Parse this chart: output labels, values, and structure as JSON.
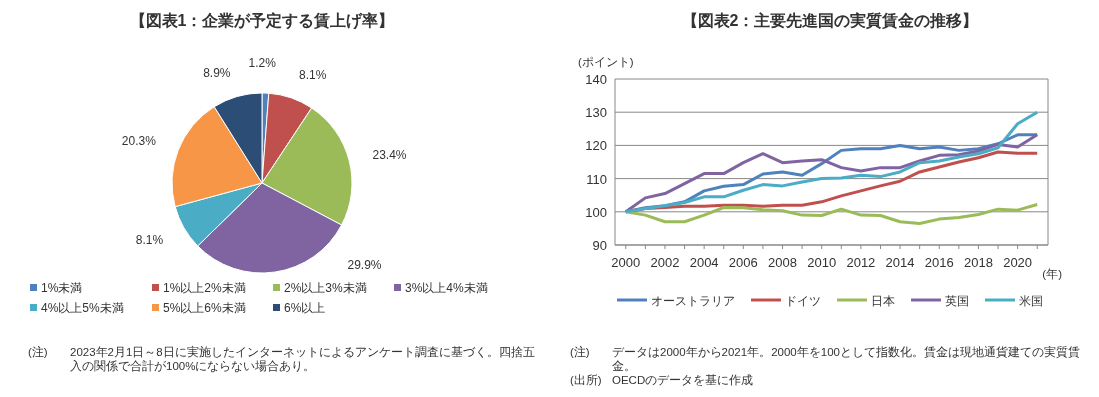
{
  "chart_data": [
    {
      "type": "pie",
      "title": "【図表1：企業が予定する賃上げ率】",
      "categories": [
        "1%未満",
        "1%以上2%未満",
        "2%以上3%未満",
        "3%以上4%未満",
        "4%以上5%未満",
        "5%以上6%未満",
        "6%以上"
      ],
      "values": [
        1.2,
        8.1,
        23.4,
        29.9,
        8.1,
        20.3,
        8.9
      ],
      "value_labels": [
        "1.2%",
        "8.1%",
        "23.4%",
        "29.9%",
        "8.1%",
        "20.3%",
        "8.9%"
      ],
      "colors": [
        "#4f81bd",
        "#c0504d",
        "#9bbb59",
        "#8064a2",
        "#4bacc6",
        "#f79646",
        "#2c4d75"
      ],
      "legend": "bottom",
      "annotations": [
        "(注)",
        "2023年2月1日～8日に実施したインターネットによるアンケート調査に基づく。四捨五入の関係で合計が100%にならない場合あり。"
      ]
    },
    {
      "type": "line",
      "title": "【図表2：主要先進国の実質賃金の推移】",
      "ylabel": "(ポイント)",
      "xlabel": "(年)",
      "x": [
        2000,
        2001,
        2002,
        2003,
        2004,
        2005,
        2006,
        2007,
        2008,
        2009,
        2010,
        2011,
        2012,
        2013,
        2014,
        2015,
        2016,
        2017,
        2018,
        2019,
        2020,
        2021
      ],
      "series": [
        {
          "name": "オーストラリア",
          "color": "#4f81bd",
          "values": [
            100,
            101.2,
            101.8,
            103,
            106.3,
            107.7,
            108.2,
            111.4,
            112,
            111,
            114.5,
            118.5,
            119,
            119,
            120,
            119,
            119.5,
            118.5,
            119,
            120.5,
            123.2,
            123.2
          ]
        },
        {
          "name": "ドイツ",
          "color": "#c0504d",
          "values": [
            100,
            101,
            101.3,
            101.7,
            101.7,
            102,
            102,
            101.7,
            102,
            102,
            103,
            104.8,
            106.3,
            107.8,
            109.2,
            112,
            113.5,
            115,
            116.3,
            118,
            117.6,
            117.6
          ]
        },
        {
          "name": "日本",
          "color": "#9bbb59",
          "values": [
            100,
            99,
            97,
            97,
            99,
            101.3,
            101.2,
            100.6,
            100.3,
            99,
            98.9,
            100.8,
            99,
            98.9,
            97,
            96.5,
            97.8,
            98.3,
            99.2,
            100.8,
            100.5,
            102.2
          ]
        },
        {
          "name": "英国",
          "color": "#8064a2",
          "values": [
            100,
            104.2,
            105.5,
            108.5,
            111.5,
            111.5,
            114.8,
            117.5,
            114.8,
            115.3,
            115.7,
            113.3,
            112.3,
            113.3,
            113.3,
            115.3,
            117,
            117.2,
            118.3,
            120.3,
            119.5,
            123.2
          ]
        },
        {
          "name": "米国",
          "color": "#4bacc6",
          "values": [
            100,
            101,
            101.8,
            102.8,
            104.5,
            104.5,
            106.5,
            108.2,
            107.8,
            109,
            110,
            110.2,
            111,
            110.6,
            112,
            114.8,
            115.3,
            116.5,
            117.5,
            119.3,
            126.5,
            130
          ]
        }
      ],
      "xlim": [
        1999.45,
        2021.55
      ],
      "xticks": [
        {
          "value": 2000,
          "label": "2000"
        },
        {
          "value": 2001,
          "label": null
        },
        {
          "value": 2002,
          "label": "2002"
        },
        {
          "value": 2003,
          "label": null
        },
        {
          "value": 2004,
          "label": "2004"
        },
        {
          "value": 2005,
          "label": null
        },
        {
          "value": 2006,
          "label": "2006"
        },
        {
          "value": 2007,
          "label": null
        },
        {
          "value": 2008,
          "label": "2008"
        },
        {
          "value": 2009,
          "label": null
        },
        {
          "value": 2010,
          "label": "2010"
        },
        {
          "value": 2011,
          "label": null
        },
        {
          "value": 2012,
          "label": "2012"
        },
        {
          "value": 2013,
          "label": null
        },
        {
          "value": 2014,
          "label": "2014"
        },
        {
          "value": 2015,
          "label": null
        },
        {
          "value": 2016,
          "label": "2016"
        },
        {
          "value": 2017,
          "label": null
        },
        {
          "value": 2018,
          "label": "2018"
        },
        {
          "value": 2019,
          "label": null
        },
        {
          "value": 2020,
          "label": "2020"
        },
        {
          "value": 2021,
          "label": null
        }
      ],
      "ylim": [
        90,
        140
      ],
      "yticks": [
        90,
        100,
        110,
        120,
        130,
        140
      ],
      "grid": "y",
      "legend": "bottom",
      "marker": "none",
      "line_style": "solid",
      "annotations": [
        "(注)",
        "データは2000年から2021年。2000年を100として指数化。賃金は現地通貨建ての実質賃金。",
        "(出所)",
        "OECDのデータを基に作成"
      ]
    }
  ]
}
